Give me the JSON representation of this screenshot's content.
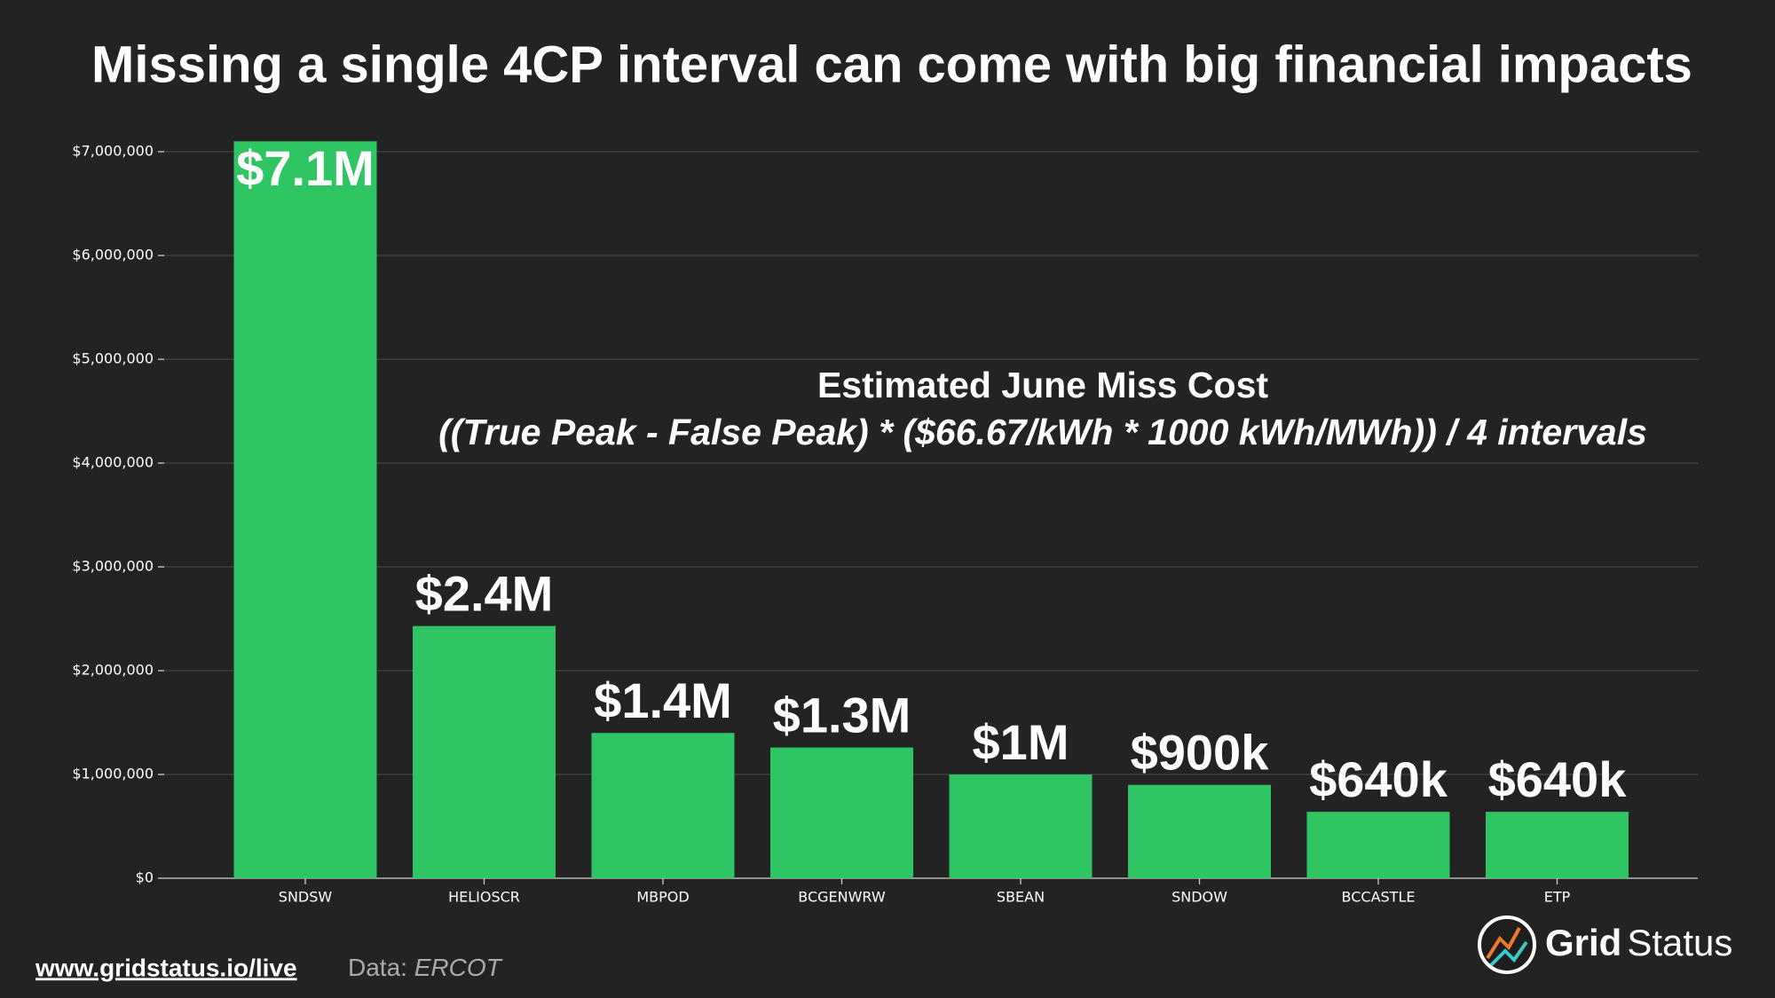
{
  "chart_data": {
    "type": "bar",
    "title": "Missing a single 4CP interval can come with big financial impacts",
    "annotation": {
      "title": "Estimated June Miss Cost",
      "formula": "((True Peak - False Peak) * ($66.67/kWh * 1000 kWh/MWh)) / 4 intervals"
    },
    "categories": [
      "SNDSW",
      "HELIOSCR",
      "MBPOD",
      "BCGENWRW",
      "SBEAN",
      "SNDOW",
      "BCCASTLE",
      "ETP"
    ],
    "values": [
      7100000,
      2430000,
      1400000,
      1260000,
      1000000,
      900000,
      640000,
      640000
    ],
    "value_labels": [
      "$7.1M",
      "$2.4M",
      "$1.4M",
      "$1.3M",
      "$1M",
      "$900k",
      "$640k",
      "$640k"
    ],
    "color": "#2ec562",
    "ylim": [
      0,
      7500000
    ],
    "yticks": [
      {
        "value": 0,
        "label": "$0"
      },
      {
        "value": 1000000,
        "label": "$1,000,000"
      },
      {
        "value": 2000000,
        "label": "$2,000,000"
      },
      {
        "value": 3000000,
        "label": "$3,000,000"
      },
      {
        "value": 4000000,
        "label": "$4,000,000"
      },
      {
        "value": 5000000,
        "label": "$5,000,000"
      },
      {
        "value": 6000000,
        "label": "$6,000,000"
      },
      {
        "value": 7000000,
        "label": "$7,000,000"
      }
    ],
    "grid": true
  },
  "footer": {
    "url": "www.gridstatus.io/live",
    "source_label": "Data:",
    "source": "ERCOT",
    "brand_bold": "Grid",
    "brand": "Status"
  }
}
